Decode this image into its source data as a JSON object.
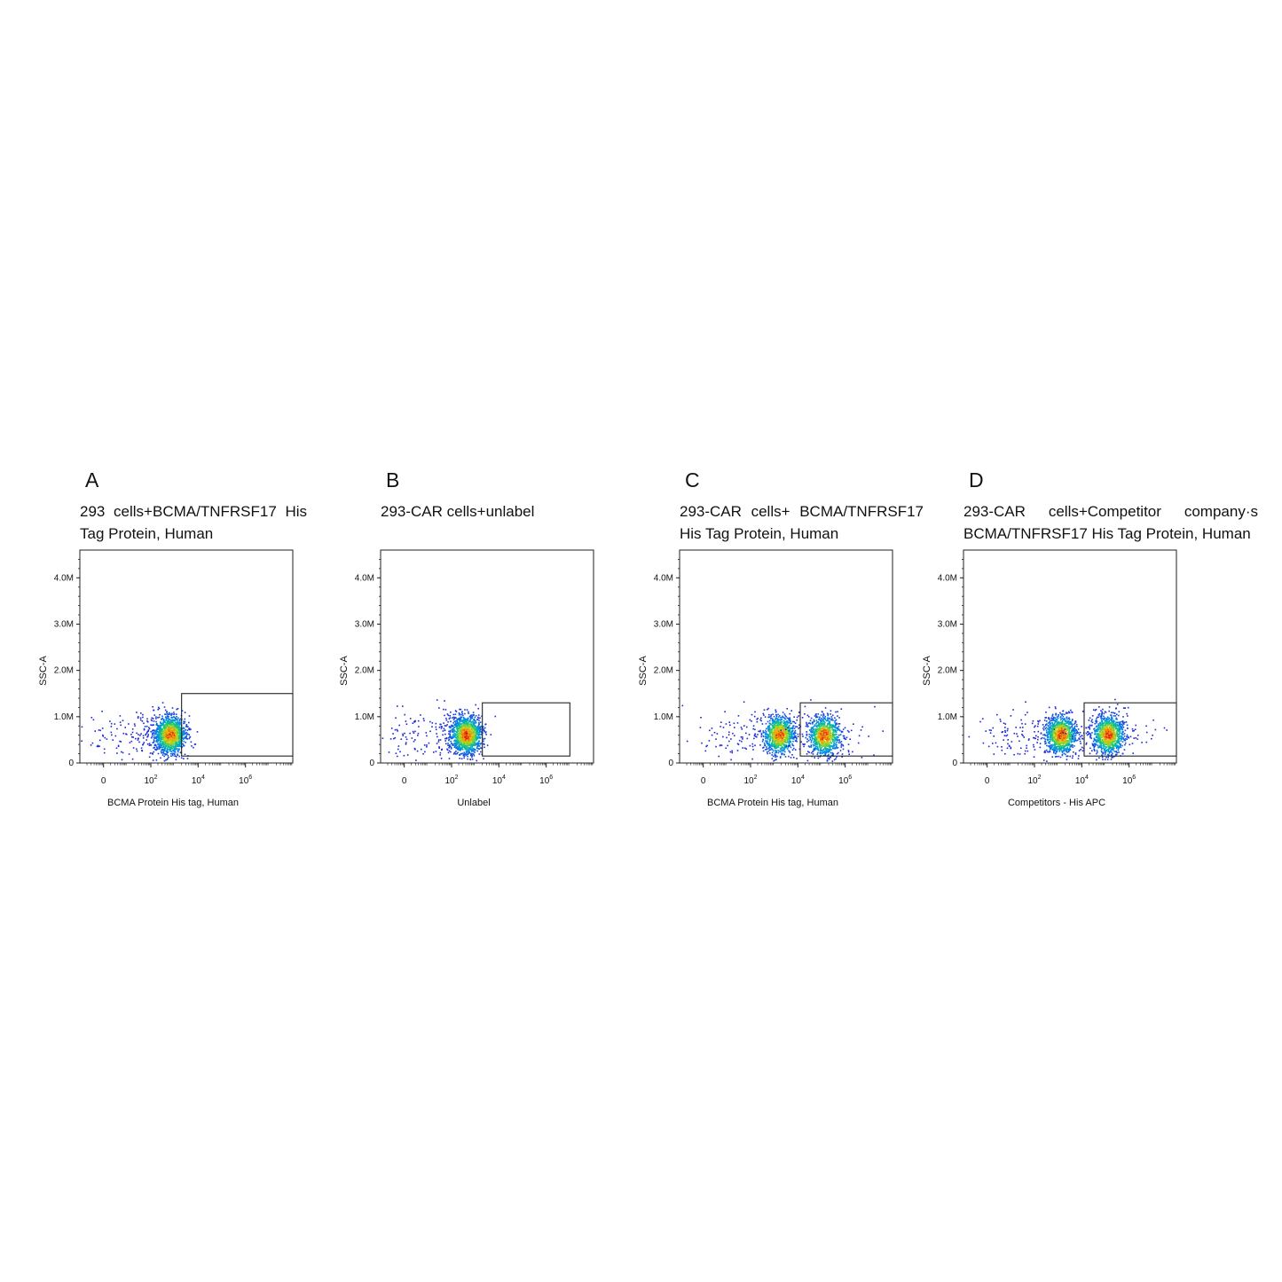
{
  "chart_data": [
    {
      "type": "scatter",
      "letter": "A",
      "title": "293 cells+BCMA/TNFRSF17 His Tag Protein, Human",
      "xlabel": "BCMA Protein His tag, Human",
      "ylabel": "SSC-A",
      "x_scale": "biexponential",
      "xlim": [
        -1,
        8
      ],
      "ylim": [
        0,
        4.6
      ],
      "y_unit": "M",
      "x_ticks": [
        "0",
        "10^2",
        "10^4",
        "10^6"
      ],
      "y_ticks": [
        "0",
        "1.0M",
        "2.0M",
        "3.0M",
        "4.0M"
      ],
      "populations": [
        {
          "x_log10": 2.8,
          "y_m": 0.62,
          "count": 1500
        }
      ],
      "gate": {
        "x_log10": [
          3.3,
          8
        ],
        "y_m": [
          0.15,
          1.5
        ]
      }
    },
    {
      "type": "scatter",
      "letter": "B",
      "title": "293-CAR cells+unlabel",
      "xlabel": "Unlabel",
      "ylabel": "SSC-A",
      "x_scale": "biexponential",
      "xlim": [
        -1,
        8
      ],
      "ylim": [
        0,
        4.6
      ],
      "y_unit": "M",
      "x_ticks": [
        "0",
        "10^2",
        "10^4",
        "10^6"
      ],
      "y_ticks": [
        "0",
        "1.0M",
        "2.0M",
        "3.0M",
        "4.0M"
      ],
      "populations": [
        {
          "x_log10": 2.6,
          "y_m": 0.62,
          "count": 1500
        }
      ],
      "gate": {
        "x_log10": [
          3.3,
          7.0
        ],
        "y_m": [
          0.15,
          1.3
        ]
      }
    },
    {
      "type": "scatter",
      "letter": "C",
      "title": "293-CAR cells+ BCMA/TNFRSF17 His Tag Protein, Human",
      "xlabel": "BCMA Protein His tag, Human",
      "ylabel": "SSC-A",
      "x_scale": "biexponential",
      "xlim": [
        -1,
        8
      ],
      "ylim": [
        0,
        4.6
      ],
      "y_unit": "M",
      "x_ticks": [
        "0",
        "10^2",
        "10^4",
        "10^6"
      ],
      "y_ticks": [
        "0",
        "1.0M",
        "2.0M",
        "3.0M",
        "4.0M"
      ],
      "populations": [
        {
          "x_log10": 3.2,
          "y_m": 0.62,
          "count": 1100
        },
        {
          "x_log10": 5.1,
          "y_m": 0.6,
          "count": 1000
        }
      ],
      "gate": {
        "x_log10": [
          4.1,
          8
        ],
        "y_m": [
          0.15,
          1.3
        ]
      }
    },
    {
      "type": "scatter",
      "letter": "D",
      "title": "293-CAR cells+Competitor company·s BCMA/TNFRSF17 His Tag Protein, Human",
      "xlabel": "Competitors - His APC",
      "ylabel": "SSC-A",
      "x_scale": "biexponential",
      "xlim": [
        -1,
        8
      ],
      "ylim": [
        0,
        4.6
      ],
      "y_unit": "M",
      "x_ticks": [
        "0",
        "10^2",
        "10^4",
        "10^6"
      ],
      "y_ticks": [
        "0",
        "1.0M",
        "2.0M",
        "3.0M",
        "4.0M"
      ],
      "populations": [
        {
          "x_log10": 3.1,
          "y_m": 0.62,
          "count": 1200
        },
        {
          "x_log10": 5.1,
          "y_m": 0.62,
          "count": 1100
        }
      ],
      "gate": {
        "x_log10": [
          4.1,
          8
        ],
        "y_m": [
          0.15,
          1.3
        ]
      }
    }
  ]
}
